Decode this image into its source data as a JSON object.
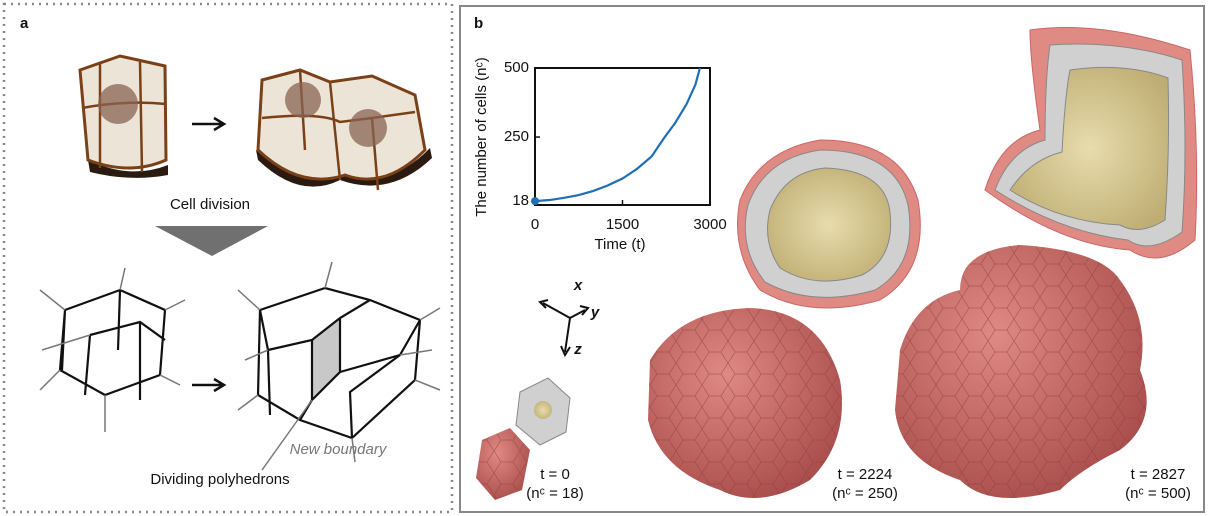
{
  "panel_a": {
    "label": "a",
    "caption_top": "Cell division",
    "annotation": "New boundary",
    "caption_bottom": "Dividing polyhedrons"
  },
  "panel_b": {
    "label": "b",
    "axes": [
      "x",
      "y",
      "z"
    ],
    "snapshots": [
      {
        "time": "t = 0",
        "cells": "(nᶜ = 18)"
      },
      {
        "time": "t = 2224",
        "cells": "(nᶜ = 250)"
      },
      {
        "time": "t = 2827",
        "cells": "(nᶜ = 500)"
      }
    ]
  },
  "chart_data": {
    "type": "line",
    "x_label": "Time (t)",
    "y_label": "The number of cells (nᶜ)",
    "x": [
      0,
      250,
      500,
      750,
      1000,
      1250,
      1500,
      1750,
      2000,
      2224,
      2400,
      2600,
      2750,
      2827
    ],
    "values": [
      18,
      22,
      30,
      40,
      55,
      75,
      100,
      135,
      180,
      250,
      300,
      370,
      440,
      500
    ],
    "color": "#1f6fb5",
    "xlim": [
      0,
      3000
    ],
    "xticks": [
      0,
      1500,
      3000
    ],
    "ylim": [
      4,
      500
    ],
    "yticks": [
      18,
      250,
      500
    ]
  }
}
